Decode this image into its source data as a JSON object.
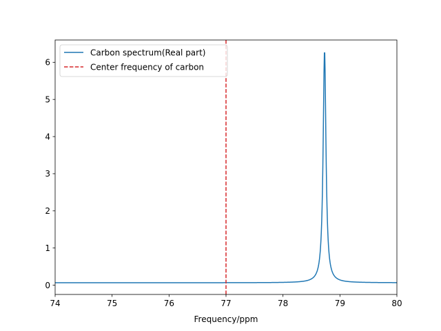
{
  "chart_data": {
    "type": "line",
    "title": "",
    "xlabel": "Frequency/ppm",
    "ylabel": "",
    "xlim": [
      74,
      80
    ],
    "ylim": [
      -0.25,
      6.6
    ],
    "xticks": [
      74,
      75,
      76,
      77,
      78,
      79,
      80
    ],
    "xtick_labels": [
      "74",
      "75",
      "76",
      "77",
      "78",
      "79",
      "80"
    ],
    "yticks": [
      0,
      1,
      2,
      3,
      4,
      5,
      6
    ],
    "ytick_labels": [
      "0",
      "1",
      "2",
      "3",
      "4",
      "5",
      "6"
    ],
    "grid": false,
    "legend_position": "top-left",
    "series": [
      {
        "name": "Carbon spectrum(Real part)",
        "color": "#1f77b4",
        "style": "solid",
        "peak_center": 78.73,
        "peak_height": 6.33,
        "baseline": 0.065,
        "half_width": 0.03,
        "x": [
          74.0,
          74.5,
          75.0,
          75.5,
          76.0,
          76.5,
          77.0,
          77.5,
          77.8,
          78.0,
          78.2,
          78.3,
          78.4,
          78.5,
          78.55,
          78.6,
          78.63,
          78.66,
          78.68,
          78.7,
          78.72,
          78.73,
          78.74,
          78.76,
          78.78,
          78.8,
          78.83,
          78.86,
          78.9,
          78.95,
          79.0,
          79.1,
          79.2,
          79.4,
          79.6,
          79.8,
          80.0
        ],
        "y": [
          0.07,
          0.07,
          0.07,
          0.07,
          0.07,
          0.07,
          0.073,
          0.08,
          0.085,
          0.09,
          0.13,
          0.14,
          0.2,
          0.24,
          0.4,
          0.37,
          0.6,
          0.93,
          1.4,
          2.66,
          5.5,
          6.33,
          5.8,
          3.5,
          1.6,
          0.93,
          0.48,
          0.31,
          0.2,
          0.16,
          0.16,
          0.11,
          0.1,
          0.085,
          0.08,
          0.075,
          0.075
        ]
      },
      {
        "name": "Center frequency of carbon",
        "color": "#d62728",
        "style": "dashed",
        "x_value": 77.0
      }
    ]
  }
}
